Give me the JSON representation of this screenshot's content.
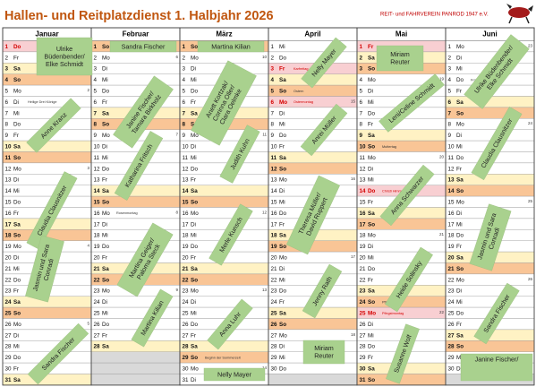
{
  "header": {
    "title": "Hallen- und Reitplatzdienst 1. Halbjahr 2026",
    "organization": "REIT- und FAHRVEREIN PANROD 1947 e.V."
  },
  "colors": {
    "weekday": {
      "Sa": "#fff2c4",
      "So": "#f9c596"
    },
    "holiday": "#f8cfd2",
    "holiday_text": "#d40000",
    "note": "#a9d18e"
  },
  "months": [
    {
      "name": "Januar",
      "days": [
        {
          "d": 1,
          "w": "Do",
          "holiday": true
        },
        {
          "d": 2,
          "w": "Fr"
        },
        {
          "d": 3,
          "w": "Sa"
        },
        {
          "d": 4,
          "w": "So"
        },
        {
          "d": 5,
          "w": "Mo",
          "kw": 2
        },
        {
          "d": 6,
          "w": "Di",
          "note": "Heilige Drei Könige"
        },
        {
          "d": 7,
          "w": "Mi"
        },
        {
          "d": 8,
          "w": "Do"
        },
        {
          "d": 9,
          "w": "Fr"
        },
        {
          "d": 10,
          "w": "Sa"
        },
        {
          "d": 11,
          "w": "So"
        },
        {
          "d": 12,
          "w": "Mo",
          "kw": 3
        },
        {
          "d": 13,
          "w": "Di"
        },
        {
          "d": 14,
          "w": "Mi"
        },
        {
          "d": 15,
          "w": "Do"
        },
        {
          "d": 16,
          "w": "Fr"
        },
        {
          "d": 17,
          "w": "Sa"
        },
        {
          "d": 18,
          "w": "So"
        },
        {
          "d": 19,
          "w": "Mo",
          "kw": 4
        },
        {
          "d": 20,
          "w": "Di"
        },
        {
          "d": 21,
          "w": "Mi"
        },
        {
          "d": 22,
          "w": "Do"
        },
        {
          "d": 23,
          "w": "Fr"
        },
        {
          "d": 24,
          "w": "Sa"
        },
        {
          "d": 25,
          "w": "So"
        },
        {
          "d": 26,
          "w": "Mo",
          "kw": 5
        },
        {
          "d": 27,
          "w": "Di"
        },
        {
          "d": 28,
          "w": "Mi"
        },
        {
          "d": 29,
          "w": "Do"
        },
        {
          "d": 30,
          "w": "Fr"
        },
        {
          "d": 31,
          "w": "Sa"
        }
      ]
    },
    {
      "name": "Februar",
      "days": [
        {
          "d": 1,
          "w": "So"
        },
        {
          "d": 2,
          "w": "Mo",
          "kw": 6
        },
        {
          "d": 3,
          "w": "Di"
        },
        {
          "d": 4,
          "w": "Mi"
        },
        {
          "d": 5,
          "w": "Do"
        },
        {
          "d": 6,
          "w": "Fr"
        },
        {
          "d": 7,
          "w": "Sa"
        },
        {
          "d": 8,
          "w": "So"
        },
        {
          "d": 9,
          "w": "Mo",
          "kw": 7
        },
        {
          "d": 10,
          "w": "Di"
        },
        {
          "d": 11,
          "w": "Mi"
        },
        {
          "d": 12,
          "w": "Do"
        },
        {
          "d": 13,
          "w": "Fr"
        },
        {
          "d": 14,
          "w": "Sa"
        },
        {
          "d": 15,
          "w": "So"
        },
        {
          "d": 16,
          "w": "Mo",
          "kw": 8,
          "note": "Rosenmontag"
        },
        {
          "d": 17,
          "w": "Di"
        },
        {
          "d": 18,
          "w": "Mi"
        },
        {
          "d": 19,
          "w": "Do"
        },
        {
          "d": 20,
          "w": "Fr"
        },
        {
          "d": 21,
          "w": "Sa"
        },
        {
          "d": 22,
          "w": "So"
        },
        {
          "d": 23,
          "w": "Mo",
          "kw": 9
        },
        {
          "d": 24,
          "w": "Di"
        },
        {
          "d": 25,
          "w": "Mi"
        },
        {
          "d": 26,
          "w": "Do"
        },
        {
          "d": 27,
          "w": "Fr"
        },
        {
          "d": 28,
          "w": "Sa"
        }
      ]
    },
    {
      "name": "März",
      "days": [
        {
          "d": 1,
          "w": "So"
        },
        {
          "d": 2,
          "w": "Mo",
          "kw": 10
        },
        {
          "d": 3,
          "w": "Di"
        },
        {
          "d": 4,
          "w": "Mi"
        },
        {
          "d": 5,
          "w": "Do"
        },
        {
          "d": 6,
          "w": "Fr"
        },
        {
          "d": 7,
          "w": "Sa"
        },
        {
          "d": 8,
          "w": "So"
        },
        {
          "d": 9,
          "w": "Mo",
          "kw": 11
        },
        {
          "d": 10,
          "w": "Di"
        },
        {
          "d": 11,
          "w": "Mi"
        },
        {
          "d": 12,
          "w": "Do"
        },
        {
          "d": 13,
          "w": "Fr"
        },
        {
          "d": 14,
          "w": "Sa"
        },
        {
          "d": 15,
          "w": "So"
        },
        {
          "d": 16,
          "w": "Mo",
          "kw": 12
        },
        {
          "d": 17,
          "w": "Di"
        },
        {
          "d": 18,
          "w": "Mi"
        },
        {
          "d": 19,
          "w": "Do"
        },
        {
          "d": 20,
          "w": "Fr"
        },
        {
          "d": 21,
          "w": "Sa"
        },
        {
          "d": 22,
          "w": "So"
        },
        {
          "d": 23,
          "w": "Mo",
          "kw": 13
        },
        {
          "d": 24,
          "w": "Di"
        },
        {
          "d": 25,
          "w": "Mi"
        },
        {
          "d": 26,
          "w": "Do"
        },
        {
          "d": 27,
          "w": "Fr"
        },
        {
          "d": 28,
          "w": "Sa"
        },
        {
          "d": 29,
          "w": "So",
          "note": "Beginn der Sommerzeit"
        },
        {
          "d": 30,
          "w": "Mo",
          "kw": 14
        },
        {
          "d": 31,
          "w": "Di"
        }
      ]
    },
    {
      "name": "April",
      "days": [
        {
          "d": 1,
          "w": "Mi"
        },
        {
          "d": 2,
          "w": "Do"
        },
        {
          "d": 3,
          "w": "Fr",
          "holiday": true,
          "note": "Karfreitag"
        },
        {
          "d": 4,
          "w": "Sa"
        },
        {
          "d": 5,
          "w": "So",
          "note": "Ostern"
        },
        {
          "d": 6,
          "w": "Mo",
          "kw": 15,
          "holiday": true,
          "note": "Ostermontag"
        },
        {
          "d": 7,
          "w": "Di"
        },
        {
          "d": 8,
          "w": "Mi"
        },
        {
          "d": 9,
          "w": "Do"
        },
        {
          "d": 10,
          "w": "Fr"
        },
        {
          "d": 11,
          "w": "Sa"
        },
        {
          "d": 12,
          "w": "So"
        },
        {
          "d": 13,
          "w": "Mo",
          "kw": 16
        },
        {
          "d": 14,
          "w": "Di"
        },
        {
          "d": 15,
          "w": "Mi"
        },
        {
          "d": 16,
          "w": "Do"
        },
        {
          "d": 17,
          "w": "Fr"
        },
        {
          "d": 18,
          "w": "Sa"
        },
        {
          "d": 19,
          "w": "So"
        },
        {
          "d": 20,
          "w": "Mo",
          "kw": 17
        },
        {
          "d": 21,
          "w": "Di"
        },
        {
          "d": 22,
          "w": "Mi"
        },
        {
          "d": 23,
          "w": "Do"
        },
        {
          "d": 24,
          "w": "Fr"
        },
        {
          "d": 25,
          "w": "Sa"
        },
        {
          "d": 26,
          "w": "So"
        },
        {
          "d": 27,
          "w": "Mo",
          "kw": 18
        },
        {
          "d": 28,
          "w": "Di"
        },
        {
          "d": 29,
          "w": "Mi"
        },
        {
          "d": 30,
          "w": "Do"
        }
      ]
    },
    {
      "name": "Mai",
      "days": [
        {
          "d": 1,
          "w": "Fr",
          "holiday": true
        },
        {
          "d": 2,
          "w": "Sa"
        },
        {
          "d": 3,
          "w": "So"
        },
        {
          "d": 4,
          "w": "Mo",
          "kw": 19
        },
        {
          "d": 5,
          "w": "Di"
        },
        {
          "d": 6,
          "w": "Mi"
        },
        {
          "d": 7,
          "w": "Do"
        },
        {
          "d": 8,
          "w": "Fr"
        },
        {
          "d": 9,
          "w": "Sa"
        },
        {
          "d": 10,
          "w": "So",
          "note": "Muttertag"
        },
        {
          "d": 11,
          "w": "Mo",
          "kw": 20
        },
        {
          "d": 12,
          "w": "Di"
        },
        {
          "d": 13,
          "w": "Mi"
        },
        {
          "d": 14,
          "w": "Do",
          "holiday": true,
          "note": "Christi Himm."
        },
        {
          "d": 15,
          "w": "Fr"
        },
        {
          "d": 16,
          "w": "Sa"
        },
        {
          "d": 17,
          "w": "So"
        },
        {
          "d": 18,
          "w": "Mo",
          "kw": 21
        },
        {
          "d": 19,
          "w": "Di"
        },
        {
          "d": 20,
          "w": "Mi"
        },
        {
          "d": 21,
          "w": "Do"
        },
        {
          "d": 22,
          "w": "Fr"
        },
        {
          "d": 23,
          "w": "Sa"
        },
        {
          "d": 24,
          "w": "So",
          "note": "Pfingsten"
        },
        {
          "d": 25,
          "w": "Mo",
          "kw": 22,
          "holiday": true,
          "note": "Pfingstmontag"
        },
        {
          "d": 26,
          "w": "Di"
        },
        {
          "d": 27,
          "w": "Mi"
        },
        {
          "d": 28,
          "w": "Do"
        },
        {
          "d": 29,
          "w": "Fr"
        },
        {
          "d": 30,
          "w": "Sa"
        },
        {
          "d": 31,
          "w": "So"
        }
      ]
    },
    {
      "name": "Juni",
      "days": [
        {
          "d": 1,
          "w": "Mo",
          "kw": 23
        },
        {
          "d": 2,
          "w": "Di"
        },
        {
          "d": 3,
          "w": "Mi"
        },
        {
          "d": 4,
          "w": "Do",
          "note": "Fronleichnam"
        },
        {
          "d": 5,
          "w": "Fr"
        },
        {
          "d": 6,
          "w": "Sa"
        },
        {
          "d": 7,
          "w": "So"
        },
        {
          "d": 8,
          "w": "Mo",
          "kw": 24
        },
        {
          "d": 9,
          "w": "Di"
        },
        {
          "d": 10,
          "w": "Mi"
        },
        {
          "d": 11,
          "w": "Do"
        },
        {
          "d": 12,
          "w": "Fr"
        },
        {
          "d": 13,
          "w": "Sa"
        },
        {
          "d": 14,
          "w": "So"
        },
        {
          "d": 15,
          "w": "Mo",
          "kw": 25
        },
        {
          "d": 16,
          "w": "Di"
        },
        {
          "d": 17,
          "w": "Mi"
        },
        {
          "d": 18,
          "w": "Do"
        },
        {
          "d": 19,
          "w": "Fr"
        },
        {
          "d": 20,
          "w": "Sa"
        },
        {
          "d": 21,
          "w": "So"
        },
        {
          "d": 22,
          "w": "Mo",
          "kw": 26
        },
        {
          "d": 23,
          "w": "Di"
        },
        {
          "d": 24,
          "w": "Mi"
        },
        {
          "d": 25,
          "w": "Do"
        },
        {
          "d": 26,
          "w": "Fr"
        },
        {
          "d": 27,
          "w": "Sa"
        },
        {
          "d": 28,
          "w": "So"
        },
        {
          "d": 29,
          "w": "Mo",
          "kw": 27
        },
        {
          "d": 30,
          "w": "Di"
        }
      ]
    }
  ],
  "notes": [
    {
      "lines": [
        "Ulrike",
        "Büdenbender/",
        "Elke Schmidt"
      ]
    },
    {
      "lines": [
        "Anne Kranz"
      ]
    },
    {
      "lines": [
        "Claudia Clausnitzer"
      ]
    },
    {
      "lines": [
        "Jasmin und Sara",
        "Conradi"
      ]
    },
    {
      "lines": [
        "Sandra Fischer"
      ]
    },
    {
      "lines": [
        "Sandra Fischer"
      ]
    },
    {
      "lines": [
        "Janine Fischer/",
        "Tamara Birkholz"
      ]
    },
    {
      "lines": [
        "Katharina Fritsch"
      ]
    },
    {
      "lines": [
        "Martina Geiger/",
        "Paloma Steck"
      ]
    },
    {
      "lines": [
        "Martina Kilian"
      ]
    },
    {
      "lines": [
        "Martina Kilian"
      ]
    },
    {
      "lines": [
        "Anett Kortzak/",
        "Corinna Oller/",
        "Clara Oelmke"
      ]
    },
    {
      "lines": [
        "Judith Kuhn"
      ]
    },
    {
      "lines": [
        "Merle Kunsch"
      ]
    },
    {
      "lines": [
        "Anna Luhr"
      ]
    },
    {
      "lines": [
        "Nelly Mayer"
      ]
    },
    {
      "lines": [
        "Nelly Mayer"
      ]
    },
    {
      "lines": [
        "Anrei Müller"
      ]
    },
    {
      "lines": [
        "Theresa Müller/",
        "David Ruppert"
      ]
    },
    {
      "lines": [
        "Jenny Rath"
      ]
    },
    {
      "lines": [
        "Miriam",
        "Reuter"
      ]
    },
    {
      "lines": [
        "Miriam",
        "Reuter"
      ]
    },
    {
      "lines": [
        "Leni/Celine Schmidt"
      ]
    },
    {
      "lines": [
        "Anna Schwarzer"
      ]
    },
    {
      "lines": [
        "Heide Solinsky"
      ]
    },
    {
      "lines": [
        "Susanne Wolf"
      ]
    },
    {
      "lines": [
        "Ulrike Büdenbender/",
        "Elke Schmidt"
      ]
    },
    {
      "lines": [
        "Claudia Clausnitzer"
      ]
    },
    {
      "lines": [
        "Jasmin und Sara",
        "Conradi"
      ]
    },
    {
      "lines": [
        "Sandra Fischer"
      ]
    },
    {
      "lines": [
        "Janine Fischer/"
      ]
    }
  ]
}
